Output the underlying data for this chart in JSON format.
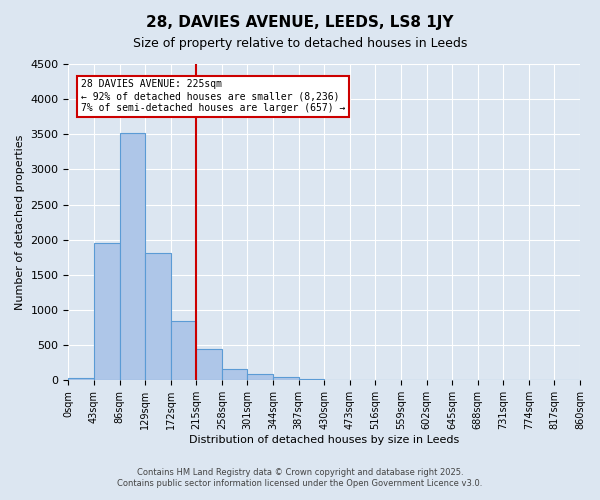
{
  "title_line1": "28, DAVIES AVENUE, LEEDS, LS8 1JY",
  "title_line2": "Size of property relative to detached houses in Leeds",
  "xlabel": "Distribution of detached houses by size in Leeds",
  "ylabel": "Number of detached properties",
  "bin_labels": [
    "0sqm",
    "43sqm",
    "86sqm",
    "129sqm",
    "172sqm",
    "215sqm",
    "258sqm",
    "301sqm",
    "344sqm",
    "387sqm",
    "430sqm",
    "473sqm",
    "516sqm",
    "559sqm",
    "602sqm",
    "645sqm",
    "688sqm",
    "731sqm",
    "774sqm",
    "817sqm",
    "860sqm"
  ],
  "bar_values": [
    30,
    1950,
    3520,
    1810,
    840,
    450,
    155,
    90,
    45,
    20,
    5,
    0,
    0,
    0,
    0,
    0,
    0,
    0,
    0,
    0
  ],
  "bar_color": "#aec6e8",
  "bar_edge_color": "#5b9bd5",
  "background_color": "#dce6f1",
  "grid_color": "#ffffff",
  "vline_x": 5,
  "vline_color": "#cc0000",
  "annotation_text": "28 DAVIES AVENUE: 225sqm\n← 92% of detached houses are smaller (8,236)\n7% of semi-detached houses are larger (657) →",
  "annotation_box_color": "#ffffff",
  "annotation_box_edge": "#cc0000",
  "ylim": [
    0,
    4500
  ],
  "yticks": [
    0,
    500,
    1000,
    1500,
    2000,
    2500,
    3000,
    3500,
    4000,
    4500
  ],
  "footnote1": "Contains HM Land Registry data © Crown copyright and database right 2025.",
  "footnote2": "Contains public sector information licensed under the Open Government Licence v3.0."
}
